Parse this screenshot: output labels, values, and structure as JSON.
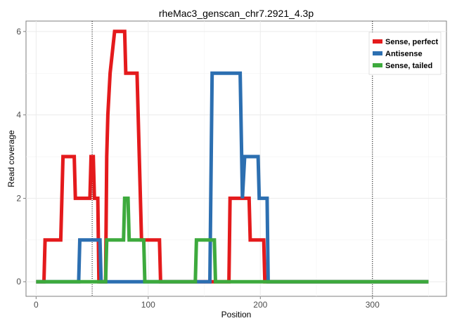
{
  "chart_data": {
    "type": "line",
    "title": "rheMac3_genscan_chr7.2921_4.3p",
    "xlabel": "Position",
    "ylabel": "Read coverage",
    "xlim": [
      -9,
      366
    ],
    "ylim": [
      -0.35,
      6.25
    ],
    "x_ticks": [
      0,
      100,
      200,
      300
    ],
    "y_ticks": [
      0,
      2,
      4,
      6
    ],
    "grid": true,
    "vlines": [
      50,
      300
    ],
    "legend_position": "top-right",
    "series": [
      {
        "name": "Sense, perfect",
        "color": "#E41A1C",
        "points": [
          [
            0,
            0
          ],
          [
            7,
            0
          ],
          [
            8,
            1
          ],
          [
            22,
            1
          ],
          [
            23,
            2
          ],
          [
            24,
            3
          ],
          [
            34,
            3
          ],
          [
            35,
            2
          ],
          [
            48,
            2
          ],
          [
            49,
            3
          ],
          [
            51,
            3
          ],
          [
            52,
            2
          ],
          [
            55,
            2
          ],
          [
            56,
            0
          ],
          [
            62,
            0
          ],
          [
            63,
            3
          ],
          [
            64,
            4
          ],
          [
            66,
            5
          ],
          [
            70,
            6
          ],
          [
            79,
            6
          ],
          [
            80,
            5
          ],
          [
            90,
            5
          ],
          [
            91,
            4
          ],
          [
            94,
            1
          ],
          [
            110,
            1
          ],
          [
            111,
            0
          ],
          [
            172,
            0
          ],
          [
            173,
            2
          ],
          [
            190,
            2
          ],
          [
            191,
            1
          ],
          [
            203,
            1
          ],
          [
            204,
            0
          ],
          [
            350,
            0
          ]
        ]
      },
      {
        "name": "Antisense",
        "color": "#2C6FB1",
        "points": [
          [
            0,
            0
          ],
          [
            38,
            0
          ],
          [
            39,
            1
          ],
          [
            57,
            1
          ],
          [
            58,
            0
          ],
          [
            155,
            0
          ],
          [
            157,
            5
          ],
          [
            182,
            5
          ],
          [
            184,
            2
          ],
          [
            186,
            3
          ],
          [
            198,
            3
          ],
          [
            199,
            2
          ],
          [
            206,
            2
          ],
          [
            207,
            0
          ],
          [
            350,
            0
          ]
        ]
      },
      {
        "name": "Sense, tailed",
        "color": "#3DAA3D",
        "points": [
          [
            0,
            0
          ],
          [
            62,
            0
          ],
          [
            63,
            1
          ],
          [
            78,
            1
          ],
          [
            79,
            2
          ],
          [
            82,
            2
          ],
          [
            83,
            1
          ],
          [
            96,
            1
          ],
          [
            97,
            0
          ],
          [
            142,
            0
          ],
          [
            143,
            1
          ],
          [
            159,
            1
          ],
          [
            160,
            0
          ],
          [
            350,
            0
          ]
        ]
      }
    ]
  }
}
